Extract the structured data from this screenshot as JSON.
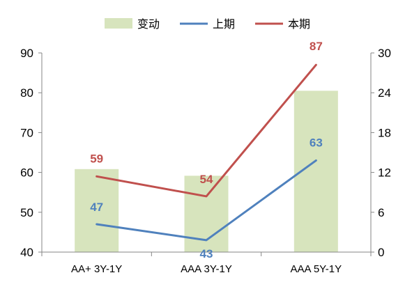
{
  "chart_data": {
    "type": "bar+line",
    "categories": [
      "AA+ 3Y-1Y",
      "AAA 3Y-1Y",
      "AAA 5Y-1Y"
    ],
    "legend": [
      {
        "name": "变动",
        "kind": "bar",
        "color": "#d7e4bd"
      },
      {
        "name": "上期",
        "kind": "line",
        "color": "#4f81bd"
      },
      {
        "name": "本期",
        "kind": "line",
        "color": "#c0504d"
      }
    ],
    "bar_series": {
      "name": "变动",
      "axis": "right",
      "values": [
        12.5,
        11.5,
        24.3
      ],
      "color": "#d7e4bd"
    },
    "line_series": [
      {
        "name": "上期",
        "axis": "left",
        "values": [
          47,
          43,
          63
        ],
        "labels": [
          "47",
          "43",
          "63"
        ],
        "color": "#4f81bd"
      },
      {
        "name": "本期",
        "axis": "left",
        "values": [
          59,
          54,
          87
        ],
        "labels": [
          "59",
          "54",
          "87"
        ],
        "color": "#c0504d"
      }
    ],
    "left_axis": {
      "min": 40,
      "max": 90,
      "ticks": [
        "40",
        "50",
        "60",
        "70",
        "80",
        "90"
      ]
    },
    "right_axis": {
      "min": 0,
      "max": 30,
      "ticks": [
        "0",
        "6",
        "12",
        "18",
        "24",
        "30"
      ]
    },
    "legend_position": "top",
    "grid": false
  }
}
